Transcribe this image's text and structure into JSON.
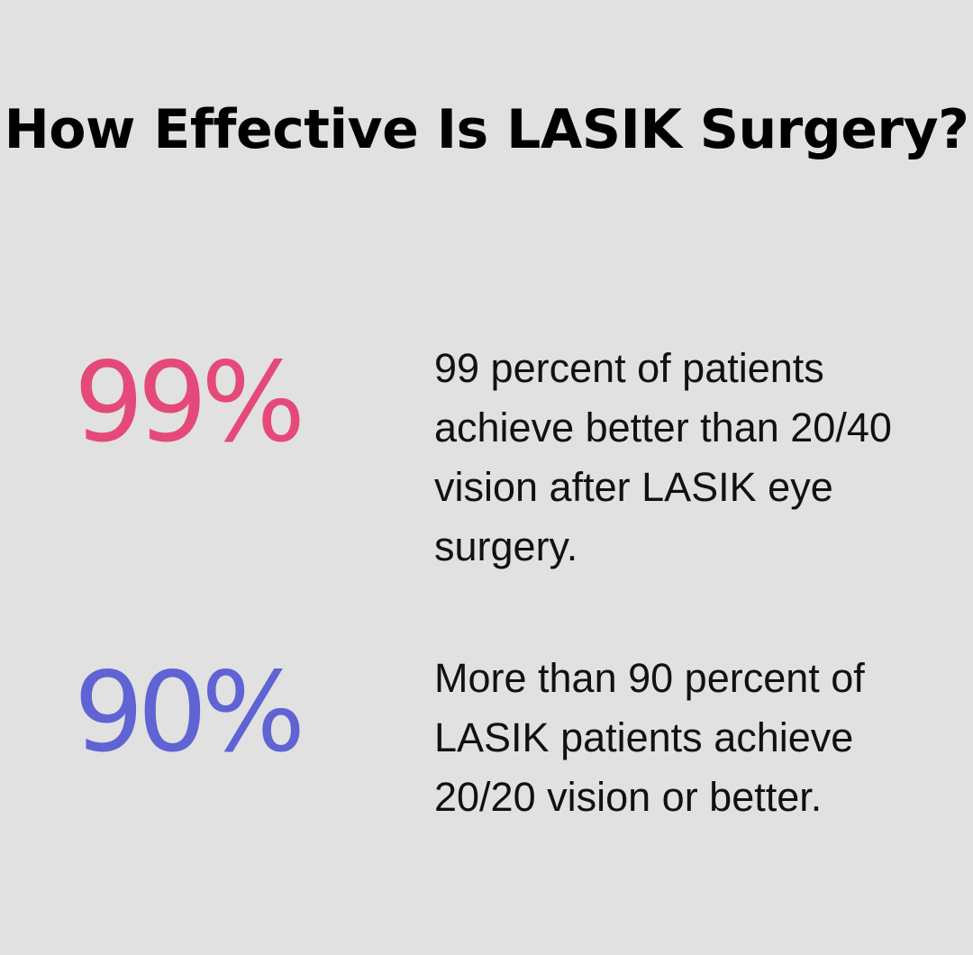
{
  "title": "How Effective Is LASIK Surgery?",
  "stats": [
    {
      "value": "99%",
      "color": "#e5497a",
      "description": "99 percent of patients achieve better than 20/40 vision after LASIK eye surgery."
    },
    {
      "value": "90%",
      "color": "#5f63d3",
      "description": "More than 90 percent of LASIK patients achieve 20/20 vision or better."
    }
  ]
}
